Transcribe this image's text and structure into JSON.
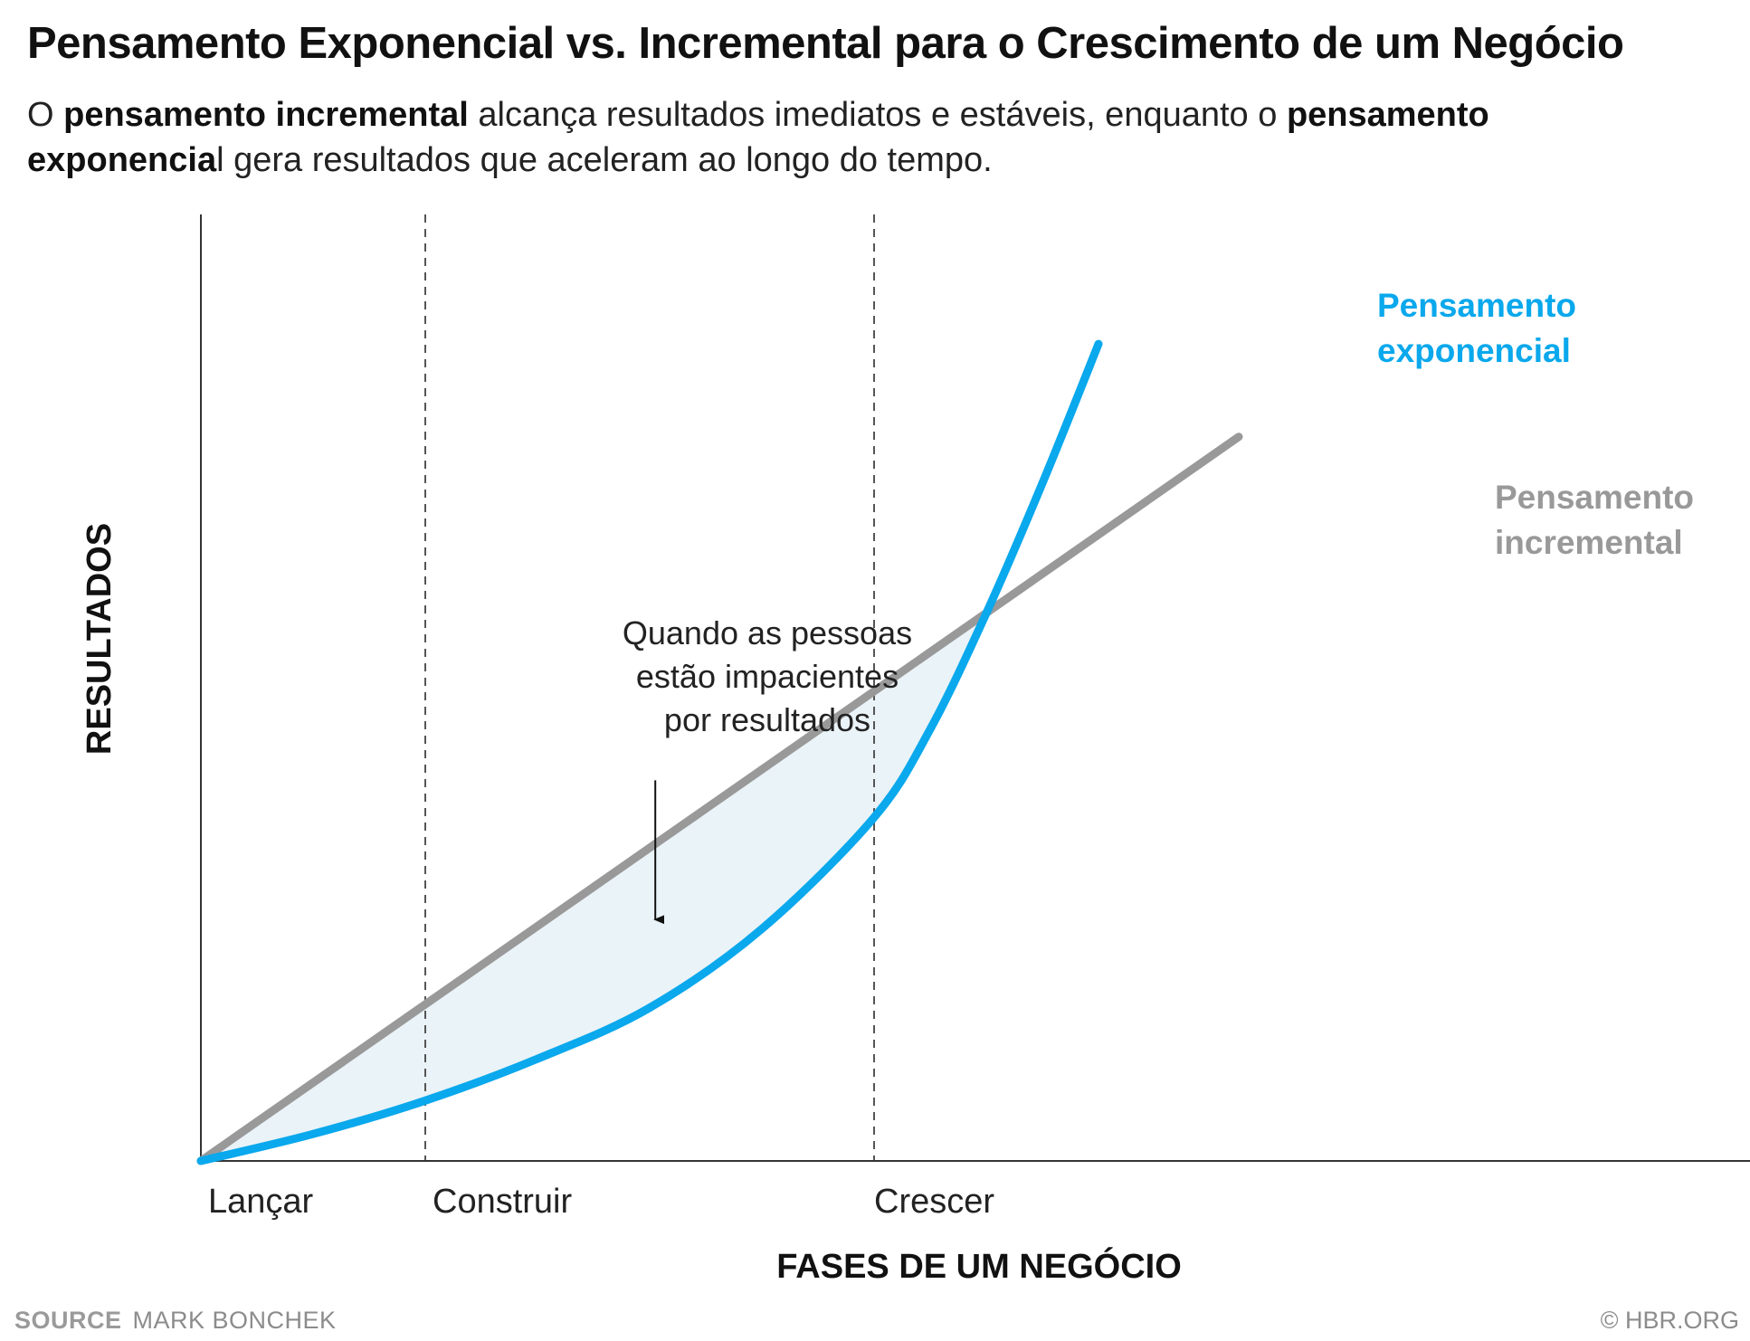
{
  "header": {
    "title": "Pensamento Exponencial vs. Incremental para o Crescimento de um Negócio",
    "subtitle": {
      "part1": "O ",
      "bold1": "pensamento incremental",
      "part2": " alcança resultados imediatos e estáveis, enquanto o ",
      "bold2": "pensamento exponencia",
      "part3": "l gera resultados que aceleram ao longo do tempo."
    }
  },
  "colors": {
    "exponential": "#0aa8ec",
    "incremental": "#999999",
    "gap_fill": "#eaf3f8",
    "axis": "#333333",
    "text": "#111111"
  },
  "chart_data": {
    "type": "line",
    "title": "Pensamento Exponencial vs. Incremental para o Crescimento de um Negócio",
    "xlabel": "FASES DE UM NEGÓCIO",
    "ylabel": "RESULTADOS",
    "xlim": [
      0,
      11
    ],
    "ylim": [
      0,
      10
    ],
    "grid": false,
    "phases": [
      {
        "label": "Lançar",
        "x": 0,
        "divider": false
      },
      {
        "label": "Construir",
        "x": 2,
        "divider": true
      },
      {
        "label": "Crescer",
        "x": 6,
        "divider": true
      }
    ],
    "series": [
      {
        "name": "Pensamento incremental",
        "label_lines": [
          "Pensamento",
          "incremental"
        ],
        "x": [
          0,
          9.25
        ],
        "values": [
          0,
          7.8
        ]
      },
      {
        "name": "Pensamento exponencial",
        "label_lines": [
          "Pensamento",
          "exponencial"
        ],
        "x": [
          0,
          1,
          2,
          3,
          4,
          5,
          6,
          6.5,
          7,
          7.5,
          8
        ],
        "values": [
          0,
          0.29,
          0.65,
          1.1,
          1.65,
          2.5,
          3.7,
          4.65,
          5.9,
          7.3,
          8.8
        ]
      }
    ],
    "shaded_region": {
      "description": "gap between the two curves",
      "x_range": [
        0,
        7.1
      ]
    },
    "annotation": {
      "lines": [
        "Quando as pessoas",
        "estão impacientes",
        "por resultados"
      ],
      "arrow_x": 4.05,
      "arrow_y_from": 4.1,
      "arrow_y_to": 2.6
    }
  },
  "footer": {
    "source_label": "SOURCE",
    "source_text": "MARK BONCHEK",
    "copyright": "© HBR.ORG"
  }
}
